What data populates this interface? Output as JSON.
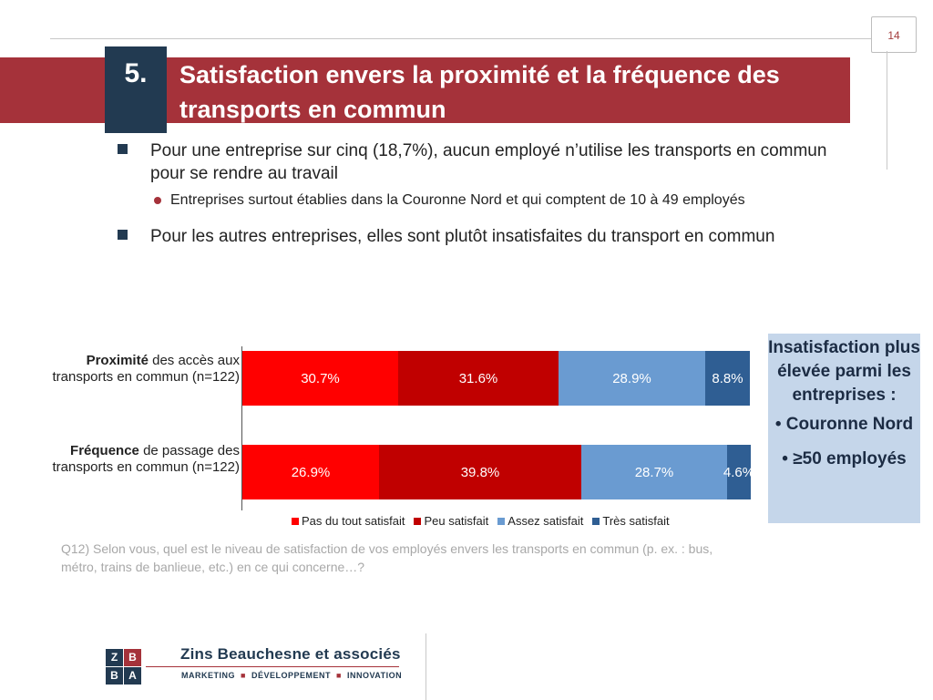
{
  "page": {
    "number": "14"
  },
  "header": {
    "section_number": "5.",
    "title": "Satisfaction envers la proximité et la fréquence des transports en commun"
  },
  "bullets": [
    {
      "text": "Pour une entreprise sur cinq (18,7%), aucun employé n’utilise les transports en commun pour se rendre au travail",
      "sub": "Entreprises surtout établies dans la Couronne Nord et qui comptent de 10 à 49 employés"
    },
    {
      "text": "Pour les autres entreprises, elles sont plutôt insatisfaites du transport en commun"
    }
  ],
  "chart_data": {
    "type": "bar",
    "stacked": true,
    "orientation": "horizontal",
    "categories": [
      {
        "bold": "Proximité",
        "rest": " des accès aux transports en commun (n=122)"
      },
      {
        "bold": "Fréquence",
        "rest": " de passage des transports en commun (n=122)"
      }
    ],
    "series": [
      {
        "name": "Pas du tout satisfait",
        "color": "#ff0000",
        "values": [
          30.7,
          26.9
        ],
        "labels": [
          "30.7%",
          "26.9%"
        ]
      },
      {
        "name": "Peu satisfait",
        "color": "#c00000",
        "values": [
          31.6,
          39.8
        ],
        "labels": [
          "31.6%",
          "39.8%"
        ]
      },
      {
        "name": "Assez satisfait",
        "color": "#6a9bd1",
        "values": [
          28.9,
          28.7
        ],
        "labels": [
          "28.9%",
          "28.7%"
        ]
      },
      {
        "name": "Très satisfait",
        "color": "#2f5e93",
        "values": [
          8.8,
          4.6
        ],
        "labels": [
          "8.8%",
          "4.6%"
        ]
      }
    ],
    "xlim": [
      0,
      100
    ],
    "legend_position": "bottom"
  },
  "callout": {
    "heading": "Insatisfaction plus élevée parmi les entreprises :",
    "items": [
      "Couronne Nord",
      "≥50 employés"
    ]
  },
  "footnote": "Q12) Selon vous, quel est le niveau de satisfaction de vos employés envers les transports en commun (p. ex. : bus, métro, trains de banlieue, etc.) en ce qui concerne…?",
  "logo": {
    "letters": [
      "Z",
      "B",
      "B",
      "A"
    ],
    "name": "Zins Beauchesne et associés",
    "tagline": [
      "MARKETING",
      "DÉVELOPPEMENT",
      "INNOVATION"
    ]
  },
  "colors": {
    "brand_red": "#a5323a",
    "brand_navy": "#223a51",
    "callout_bg": "#c5d6ea"
  }
}
